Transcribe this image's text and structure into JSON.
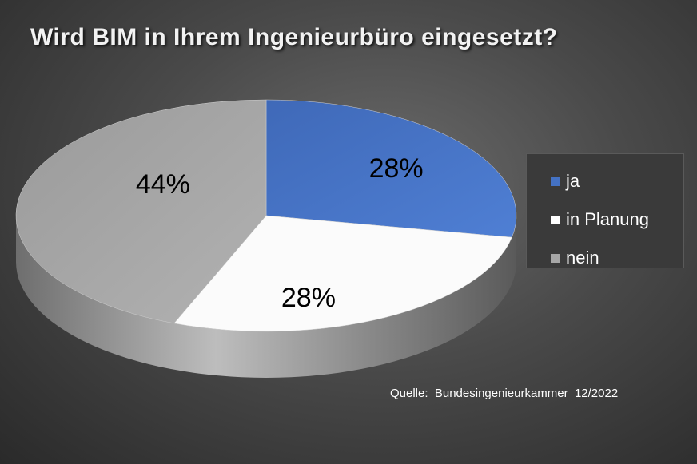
{
  "chart_data": {
    "type": "pie",
    "title": "Wird BIM in Ihrem Ingenieurbüro eingesetzt?",
    "categories": [
      "ja",
      "in Planung",
      "nein"
    ],
    "values": [
      28,
      28,
      44
    ],
    "data_labels": [
      "28%",
      "28%",
      "44%"
    ],
    "colors": [
      "#4472c4",
      "#ffffff",
      "#a6a6a6"
    ],
    "legend_position": "right",
    "style": "3d"
  },
  "source_note": "Quelle:  Bundesingenieurkammer  12/2022"
}
